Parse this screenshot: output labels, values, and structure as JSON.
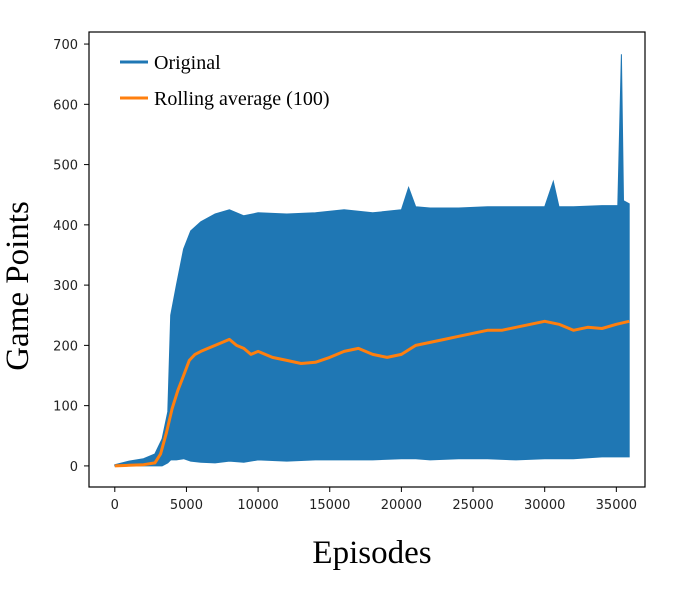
{
  "chart_data": {
    "type": "line",
    "xlabel": "Episodes",
    "ylabel": "Game Points",
    "xlim": [
      -1800,
      37000
    ],
    "ylim": [
      -35,
      720
    ],
    "xticks": [
      0,
      5000,
      10000,
      15000,
      20000,
      25000,
      30000,
      35000
    ],
    "yticks": [
      0,
      100,
      200,
      300,
      400,
      500,
      600,
      700
    ],
    "grid": false,
    "legend_position": "top-left",
    "series": [
      {
        "name": "Original",
        "color": "#1f77b4",
        "style": "band",
        "x": [
          0,
          1000,
          2000,
          2800,
          3300,
          3700,
          3900,
          4300,
          4800,
          5300,
          6000,
          7000,
          8000,
          9000,
          10000,
          12000,
          14000,
          16000,
          18000,
          20000,
          20500,
          21000,
          22000,
          24000,
          26000,
          28000,
          30000,
          30600,
          31000,
          32000,
          34000,
          35100,
          35350,
          35500,
          35900
        ],
        "high": [
          2,
          8,
          12,
          20,
          45,
          90,
          250,
          300,
          360,
          390,
          405,
          418,
          425,
          415,
          420,
          418,
          420,
          425,
          420,
          425,
          462,
          430,
          428,
          428,
          430,
          430,
          430,
          472,
          430,
          430,
          432,
          432,
          683,
          440,
          435
        ],
        "low": [
          0,
          0,
          0,
          0,
          0,
          5,
          10,
          10,
          12,
          8,
          6,
          5,
          8,
          6,
          10,
          8,
          10,
          10,
          10,
          12,
          12,
          12,
          10,
          12,
          12,
          10,
          12,
          12,
          12,
          12,
          15,
          15,
          15,
          15,
          15
        ]
      },
      {
        "name": "Rolling average (100)",
        "color": "#ff7f0e",
        "style": "line",
        "x": [
          0,
          1000,
          2000,
          2800,
          3200,
          3600,
          4000,
          4400,
          4800,
          5200,
          5600,
          6000,
          6500,
          7000,
          7500,
          8000,
          8500,
          9000,
          9500,
          10000,
          11000,
          12000,
          13000,
          14000,
          15000,
          16000,
          17000,
          18000,
          19000,
          20000,
          21000,
          22000,
          23000,
          24000,
          25000,
          26000,
          27000,
          28000,
          29000,
          30000,
          31000,
          32000,
          33000,
          34000,
          35000,
          35900
        ],
        "y": [
          0,
          1,
          2,
          5,
          20,
          55,
          95,
          125,
          150,
          175,
          185,
          190,
          195,
          200,
          205,
          210,
          200,
          195,
          185,
          190,
          180,
          175,
          170,
          172,
          180,
          190,
          195,
          185,
          180,
          185,
          200,
          205,
          210,
          215,
          220,
          225,
          225,
          230,
          235,
          240,
          235,
          225,
          230,
          228,
          235,
          240
        ]
      }
    ]
  }
}
